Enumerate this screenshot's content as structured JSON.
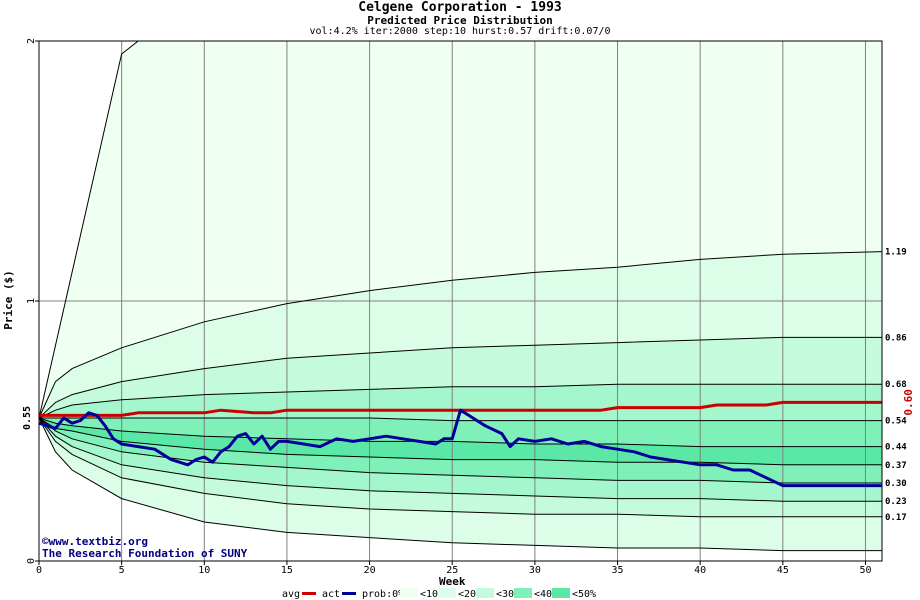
{
  "chart_data": {
    "type": "area",
    "title": "Celgene Corporation - 1993",
    "subtitle": "Predicted Price Distribution",
    "params": "vol:4.2% iter:2000 step:10 hurst:0.57 drift:0.07/0",
    "xlabel": "Week",
    "ylabel": "Price ($)",
    "xlim": [
      0,
      51
    ],
    "ylim": [
      0,
      2
    ],
    "x_ticks": [
      0,
      5,
      10,
      15,
      20,
      25,
      30,
      35,
      40,
      45,
      50
    ],
    "y_ticks": [
      0,
      1,
      2
    ],
    "grid": true,
    "start_price_label": "0.55",
    "start_price": 0.55,
    "right_price_label": "0.60",
    "band_colors": [
      "#effff1",
      "#dcfde8",
      "#c4fbdc",
      "#a4f6cc",
      "#7ef0b8",
      "#5be8a6"
    ],
    "contour_labels": [
      "1.19",
      "0.86",
      "0.68",
      "0.54",
      "0.44",
      "0.37",
      "0.30",
      "0.23",
      "0.17"
    ],
    "contours": [
      {
        "name": "upper-extreme",
        "values": [
          [
            0,
            0.55
          ],
          [
            5,
            1.95
          ],
          [
            6,
            2.0
          ],
          [
            51,
            2.0
          ]
        ]
      },
      {
        "name": "1.19",
        "values": [
          [
            0,
            0.55
          ],
          [
            1,
            0.69
          ],
          [
            2,
            0.74
          ],
          [
            5,
            0.82
          ],
          [
            10,
            0.92
          ],
          [
            15,
            0.99
          ],
          [
            20,
            1.04
          ],
          [
            25,
            1.08
          ],
          [
            30,
            1.11
          ],
          [
            35,
            1.13
          ],
          [
            40,
            1.16
          ],
          [
            45,
            1.18
          ],
          [
            51,
            1.19
          ]
        ]
      },
      {
        "name": "0.86",
        "values": [
          [
            0,
            0.55
          ],
          [
            1,
            0.61
          ],
          [
            2,
            0.64
          ],
          [
            5,
            0.69
          ],
          [
            10,
            0.74
          ],
          [
            15,
            0.78
          ],
          [
            20,
            0.8
          ],
          [
            25,
            0.82
          ],
          [
            30,
            0.83
          ],
          [
            35,
            0.84
          ],
          [
            40,
            0.85
          ],
          [
            45,
            0.86
          ],
          [
            51,
            0.86
          ]
        ]
      },
      {
        "name": "0.68",
        "values": [
          [
            0,
            0.55
          ],
          [
            1,
            0.58
          ],
          [
            2,
            0.6
          ],
          [
            5,
            0.62
          ],
          [
            10,
            0.64
          ],
          [
            15,
            0.65
          ],
          [
            20,
            0.66
          ],
          [
            25,
            0.67
          ],
          [
            30,
            0.67
          ],
          [
            35,
            0.68
          ],
          [
            40,
            0.68
          ],
          [
            45,
            0.68
          ],
          [
            51,
            0.68
          ]
        ]
      },
      {
        "name": "0.54",
        "values": [
          [
            0,
            0.55
          ],
          [
            5,
            0.55
          ],
          [
            10,
            0.55
          ],
          [
            15,
            0.55
          ],
          [
            20,
            0.55
          ],
          [
            25,
            0.54
          ],
          [
            30,
            0.54
          ],
          [
            35,
            0.54
          ],
          [
            40,
            0.54
          ],
          [
            45,
            0.54
          ],
          [
            51,
            0.54
          ]
        ]
      },
      {
        "name": "0.44",
        "values": [
          [
            0,
            0.55
          ],
          [
            1,
            0.53
          ],
          [
            2,
            0.52
          ],
          [
            5,
            0.5
          ],
          [
            10,
            0.48
          ],
          [
            15,
            0.47
          ],
          [
            20,
            0.46
          ],
          [
            25,
            0.46
          ],
          [
            30,
            0.45
          ],
          [
            35,
            0.45
          ],
          [
            40,
            0.44
          ],
          [
            45,
            0.44
          ],
          [
            51,
            0.44
          ]
        ]
      },
      {
        "name": "0.37",
        "values": [
          [
            0,
            0.55
          ],
          [
            1,
            0.51
          ],
          [
            2,
            0.5
          ],
          [
            5,
            0.46
          ],
          [
            10,
            0.43
          ],
          [
            15,
            0.41
          ],
          [
            20,
            0.4
          ],
          [
            25,
            0.39
          ],
          [
            30,
            0.39
          ],
          [
            35,
            0.38
          ],
          [
            40,
            0.38
          ],
          [
            45,
            0.37
          ],
          [
            51,
            0.37
          ]
        ]
      },
      {
        "name": "0.30",
        "values": [
          [
            0,
            0.55
          ],
          [
            1,
            0.5
          ],
          [
            2,
            0.47
          ],
          [
            5,
            0.42
          ],
          [
            10,
            0.38
          ],
          [
            15,
            0.36
          ],
          [
            20,
            0.34
          ],
          [
            25,
            0.33
          ],
          [
            30,
            0.32
          ],
          [
            35,
            0.31
          ],
          [
            40,
            0.31
          ],
          [
            45,
            0.3
          ],
          [
            51,
            0.3
          ]
        ]
      },
      {
        "name": "0.23",
        "values": [
          [
            0,
            0.55
          ],
          [
            1,
            0.48
          ],
          [
            2,
            0.44
          ],
          [
            5,
            0.37
          ],
          [
            10,
            0.32
          ],
          [
            15,
            0.29
          ],
          [
            20,
            0.27
          ],
          [
            25,
            0.26
          ],
          [
            30,
            0.25
          ],
          [
            35,
            0.24
          ],
          [
            40,
            0.24
          ],
          [
            45,
            0.23
          ],
          [
            51,
            0.23
          ]
        ]
      },
      {
        "name": "0.17",
        "values": [
          [
            0,
            0.55
          ],
          [
            1,
            0.46
          ],
          [
            2,
            0.41
          ],
          [
            5,
            0.32
          ],
          [
            10,
            0.26
          ],
          [
            15,
            0.22
          ],
          [
            20,
            0.2
          ],
          [
            25,
            0.19
          ],
          [
            30,
            0.18
          ],
          [
            35,
            0.18
          ],
          [
            40,
            0.17
          ],
          [
            45,
            0.17
          ],
          [
            51,
            0.17
          ]
        ]
      },
      {
        "name": "lower-extreme",
        "values": [
          [
            0,
            0.55
          ],
          [
            1,
            0.42
          ],
          [
            2,
            0.35
          ],
          [
            5,
            0.24
          ],
          [
            10,
            0.15
          ],
          [
            15,
            0.11
          ],
          [
            20,
            0.09
          ],
          [
            25,
            0.07
          ],
          [
            30,
            0.06
          ],
          [
            35,
            0.05
          ],
          [
            40,
            0.05
          ],
          [
            45,
            0.04
          ],
          [
            51,
            0.04
          ]
        ]
      }
    ],
    "series": [
      {
        "name": "avg",
        "color": "#cc0000",
        "values": [
          [
            0,
            0.56
          ],
          [
            3,
            0.56
          ],
          [
            4,
            0.56
          ],
          [
            5,
            0.56
          ],
          [
            6,
            0.57
          ],
          [
            9,
            0.57
          ],
          [
            10,
            0.57
          ],
          [
            11,
            0.58
          ],
          [
            13,
            0.57
          ],
          [
            14,
            0.57
          ],
          [
            15,
            0.58
          ],
          [
            25,
            0.58
          ],
          [
            34,
            0.58
          ],
          [
            35,
            0.59
          ],
          [
            40,
            0.59
          ],
          [
            41,
            0.6
          ],
          [
            44,
            0.6
          ],
          [
            45,
            0.61
          ],
          [
            51,
            0.61
          ]
        ]
      },
      {
        "name": "act",
        "color": "#000099",
        "values": [
          [
            0,
            0.53
          ],
          [
            0.5,
            0.52
          ],
          [
            1,
            0.51
          ],
          [
            1.5,
            0.55
          ],
          [
            2,
            0.53
          ],
          [
            2.5,
            0.54
          ],
          [
            3,
            0.57
          ],
          [
            3.5,
            0.56
          ],
          [
            4,
            0.52
          ],
          [
            4.5,
            0.47
          ],
          [
            5,
            0.45
          ],
          [
            6,
            0.44
          ],
          [
            7,
            0.43
          ],
          [
            8,
            0.39
          ],
          [
            9,
            0.37
          ],
          [
            9.5,
            0.39
          ],
          [
            10,
            0.4
          ],
          [
            10.5,
            0.38
          ],
          [
            11,
            0.42
          ],
          [
            11.5,
            0.44
          ],
          [
            12,
            0.48
          ],
          [
            12.5,
            0.49
          ],
          [
            13,
            0.45
          ],
          [
            13.5,
            0.48
          ],
          [
            14,
            0.43
          ],
          [
            14.5,
            0.46
          ],
          [
            15,
            0.46
          ],
          [
            16,
            0.45
          ],
          [
            17,
            0.44
          ],
          [
            18,
            0.47
          ],
          [
            19,
            0.46
          ],
          [
            20,
            0.47
          ],
          [
            21,
            0.48
          ],
          [
            22,
            0.47
          ],
          [
            23,
            0.46
          ],
          [
            24,
            0.45
          ],
          [
            24.5,
            0.47
          ],
          [
            25,
            0.47
          ],
          [
            25.5,
            0.58
          ],
          [
            26,
            0.56
          ],
          [
            27,
            0.52
          ],
          [
            28,
            0.49
          ],
          [
            28.5,
            0.44
          ],
          [
            29,
            0.47
          ],
          [
            30,
            0.46
          ],
          [
            31,
            0.47
          ],
          [
            32,
            0.45
          ],
          [
            33,
            0.46
          ],
          [
            34,
            0.44
          ],
          [
            35,
            0.43
          ],
          [
            36,
            0.42
          ],
          [
            37,
            0.4
          ],
          [
            38,
            0.39
          ],
          [
            39,
            0.38
          ],
          [
            40,
            0.37
          ],
          [
            41,
            0.37
          ],
          [
            42,
            0.35
          ],
          [
            43,
            0.35
          ],
          [
            44,
            0.32
          ],
          [
            45,
            0.29
          ],
          [
            46,
            0.29
          ],
          [
            47,
            0.29
          ],
          [
            48,
            0.29
          ],
          [
            49,
            0.29
          ],
          [
            50,
            0.29
          ],
          [
            51,
            0.29
          ]
        ]
      }
    ],
    "credit": [
      "©www.textbiz.org",
      "The Research Foundation of SUNY"
    ],
    "legend": {
      "position": "bottom",
      "line_items": [
        {
          "label": "avg",
          "color": "#cc0000"
        },
        {
          "label": "act",
          "color": "#000099"
        }
      ],
      "prob_prefix": "prob:0%",
      "prob_items": [
        {
          "label": "<10%",
          "color": "#effff1"
        },
        {
          "label": "<20%",
          "color": "#dcfde8"
        },
        {
          "label": "<30%",
          "color": "#c4fbdc"
        },
        {
          "label": "<40%",
          "color": "#7ef0b8"
        },
        {
          "label": "<50%",
          "color": "#5be8a6"
        }
      ]
    }
  }
}
